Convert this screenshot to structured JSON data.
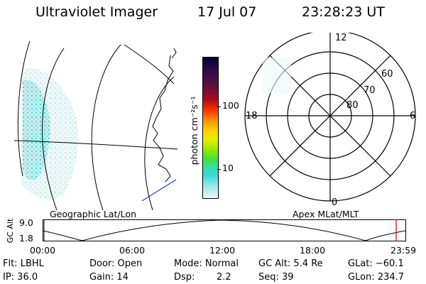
{
  "header": {
    "instrument": "Ultraviolet Imager",
    "date": "17 Jul 07",
    "time": "23:28:23 UT"
  },
  "map_left": {
    "caption": "Geographic Lat/Lon"
  },
  "colorbar": {
    "unit_label": "photon cm⁻²s⁻¹",
    "ticks": [
      "100",
      "10"
    ],
    "colors": [
      "#000030",
      "#2a0a4a",
      "#3c1060",
      "#6a0f3a",
      "#9a0a1a",
      "#d80808",
      "#ff3a00",
      "#ff8a00",
      "#ffb800",
      "#ffe000",
      "#e8f000",
      "#a0e800",
      "#40e040",
      "#30e0a0",
      "#40d8d8",
      "#a0e8e8",
      "#e8f4f4"
    ]
  },
  "polar": {
    "caption": "Apex MLat/MLT",
    "mlt_labels": [
      "12",
      "18",
      "6",
      "0"
    ],
    "lat_labels": [
      "60",
      "70",
      "80"
    ]
  },
  "altitude_plot": {
    "ylabel": "GC Alt",
    "yticks": [
      "9.0",
      "1.8"
    ],
    "xticks": [
      "00:00",
      "06:00",
      "12:00",
      "18:00",
      "23:59"
    ],
    "marker_color": "#cc0000"
  },
  "info": {
    "flt": "Flt: LBHL",
    "door": "Door: Open",
    "mode": "Mode: Normal",
    "gc_alt": "GC Alt: 5.4 Re",
    "glat": "GLat: −60.1",
    "ip": "IP: 36.0",
    "gain": "Gain: 14",
    "dsp_label": "Dsp:",
    "dsp_value": "2.2",
    "seq": "Seq: 39",
    "glon": "GLon: 234.7"
  }
}
